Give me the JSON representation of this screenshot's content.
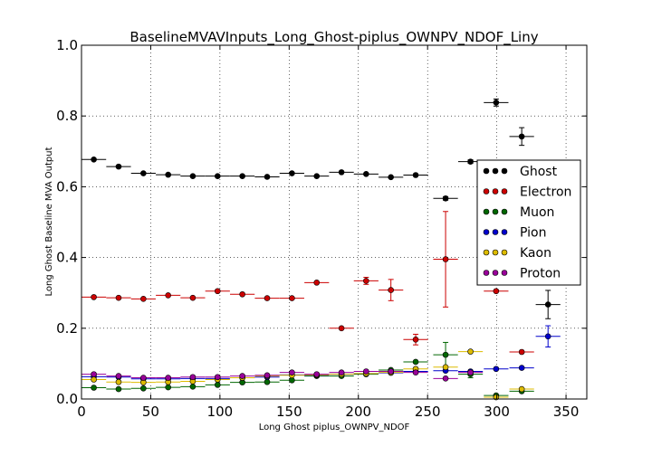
{
  "chart_data": {
    "type": "scatter",
    "title": "BaselineMVAVInputs_Long_Ghost-piplus_OWNPV_NDOF_Liny",
    "xlabel": "Long Ghost piplus_OWNPV_NDOF",
    "ylabel": "Long Ghost Baseline MVA Output",
    "xlim": [
      0,
      365
    ],
    "ylim": [
      0.0,
      1.0
    ],
    "x_ticks": [
      "0",
      "50",
      "100",
      "150",
      "200",
      "250",
      "300",
      "350"
    ],
    "y_ticks": [
      "0.0",
      "0.2",
      "0.4",
      "0.6",
      "0.8",
      "1.0"
    ],
    "grid": true,
    "legend_position": "right",
    "x_error_halfwidth": 8.9,
    "series": [
      {
        "name": "Ghost",
        "color": "#000000",
        "points": [
          [
            8.9,
            0.677,
            0
          ],
          [
            26.8,
            0.657,
            0
          ],
          [
            44.7,
            0.638,
            0
          ],
          [
            62.6,
            0.634,
            0
          ],
          [
            80.4,
            0.63,
            0
          ],
          [
            98.3,
            0.63,
            0
          ],
          [
            116.2,
            0.63,
            0
          ],
          [
            134.1,
            0.628,
            0
          ],
          [
            152.0,
            0.638,
            0
          ],
          [
            169.9,
            0.63,
            0
          ],
          [
            187.8,
            0.641,
            0
          ],
          [
            205.6,
            0.636,
            0
          ],
          [
            223.5,
            0.627,
            0
          ],
          [
            241.4,
            0.633,
            0
          ],
          [
            263.0,
            0.567,
            0.005
          ],
          [
            281.0,
            0.671,
            0.005
          ],
          [
            299.5,
            0.838,
            0.01
          ],
          [
            318.0,
            0.742,
            0.025
          ],
          [
            337.0,
            0.267,
            0.04
          ]
        ]
      },
      {
        "name": "Electron",
        "color": "#cc0000",
        "points": [
          [
            8.9,
            0.288,
            0
          ],
          [
            26.8,
            0.286,
            0
          ],
          [
            44.7,
            0.283,
            0
          ],
          [
            62.6,
            0.293,
            0
          ],
          [
            80.4,
            0.286,
            0
          ],
          [
            98.3,
            0.305,
            0
          ],
          [
            116.2,
            0.296,
            0
          ],
          [
            134.1,
            0.285,
            0
          ],
          [
            152.0,
            0.285,
            0
          ],
          [
            169.9,
            0.329,
            0
          ],
          [
            187.8,
            0.2,
            0
          ],
          [
            205.6,
            0.334,
            0.01
          ],
          [
            223.5,
            0.308,
            0.03
          ],
          [
            241.4,
            0.168,
            0.015
          ],
          [
            263.0,
            0.395,
            0.135
          ],
          [
            299.5,
            0.305,
            0
          ],
          [
            318.0,
            0.133,
            0
          ]
        ]
      },
      {
        "name": "Muon",
        "color": "#006600",
        "points": [
          [
            8.9,
            0.032,
            0
          ],
          [
            26.8,
            0.028,
            0
          ],
          [
            44.7,
            0.03,
            0
          ],
          [
            62.6,
            0.033,
            0
          ],
          [
            80.4,
            0.035,
            0
          ],
          [
            98.3,
            0.04,
            0
          ],
          [
            116.2,
            0.047,
            0
          ],
          [
            134.1,
            0.048,
            0
          ],
          [
            152.0,
            0.053,
            0
          ],
          [
            169.9,
            0.065,
            0
          ],
          [
            187.8,
            0.065,
            0
          ],
          [
            205.6,
            0.07,
            0
          ],
          [
            223.5,
            0.082,
            0
          ],
          [
            241.4,
            0.105,
            0
          ],
          [
            263.0,
            0.125,
            0.035
          ],
          [
            281.0,
            0.07,
            0.01
          ],
          [
            299.5,
            0.01,
            0
          ],
          [
            318.0,
            0.022,
            0
          ]
        ]
      },
      {
        "name": "Pion",
        "color": "#0000cc",
        "points": [
          [
            8.9,
            0.063,
            0
          ],
          [
            26.8,
            0.062,
            0
          ],
          [
            44.7,
            0.057,
            0
          ],
          [
            62.6,
            0.057,
            0
          ],
          [
            80.4,
            0.058,
            0
          ],
          [
            98.3,
            0.058,
            0
          ],
          [
            116.2,
            0.06,
            0
          ],
          [
            134.1,
            0.062,
            0
          ],
          [
            152.0,
            0.068,
            0
          ],
          [
            169.9,
            0.067,
            0
          ],
          [
            187.8,
            0.07,
            0
          ],
          [
            205.6,
            0.072,
            0
          ],
          [
            223.5,
            0.074,
            0
          ],
          [
            241.4,
            0.078,
            0
          ],
          [
            263.0,
            0.08,
            0
          ],
          [
            281.0,
            0.078,
            0
          ],
          [
            299.5,
            0.085,
            0
          ],
          [
            318.0,
            0.088,
            0
          ],
          [
            337.0,
            0.177,
            0.03
          ]
        ]
      },
      {
        "name": "Kaon",
        "color": "#ddbb00",
        "points": [
          [
            8.9,
            0.055,
            0
          ],
          [
            26.8,
            0.048,
            0
          ],
          [
            44.7,
            0.047,
            0
          ],
          [
            62.6,
            0.048,
            0
          ],
          [
            80.4,
            0.05,
            0
          ],
          [
            98.3,
            0.055,
            0
          ],
          [
            116.2,
            0.06,
            0
          ],
          [
            134.1,
            0.065,
            0
          ],
          [
            152.0,
            0.067,
            0
          ],
          [
            169.9,
            0.068,
            0
          ],
          [
            187.8,
            0.07,
            0
          ],
          [
            205.6,
            0.072,
            0
          ],
          [
            223.5,
            0.075,
            0
          ],
          [
            241.4,
            0.085,
            0
          ],
          [
            263.0,
            0.09,
            0
          ],
          [
            281.0,
            0.134,
            0
          ],
          [
            299.5,
            0.005,
            0
          ],
          [
            318.0,
            0.028,
            0
          ]
        ]
      },
      {
        "name": "Proton",
        "color": "#990099",
        "points": [
          [
            8.9,
            0.07,
            0
          ],
          [
            26.8,
            0.065,
            0
          ],
          [
            44.7,
            0.06,
            0
          ],
          [
            62.6,
            0.06,
            0
          ],
          [
            80.4,
            0.062,
            0
          ],
          [
            98.3,
            0.062,
            0
          ],
          [
            116.2,
            0.065,
            0
          ],
          [
            134.1,
            0.067,
            0
          ],
          [
            152.0,
            0.075,
            0
          ],
          [
            169.9,
            0.07,
            0
          ],
          [
            187.8,
            0.075,
            0
          ],
          [
            205.6,
            0.078,
            0
          ],
          [
            223.5,
            0.078,
            0
          ],
          [
            241.4,
            0.075,
            0
          ],
          [
            263.0,
            0.058,
            0
          ],
          [
            281.0,
            0.075,
            0
          ]
        ]
      }
    ]
  }
}
